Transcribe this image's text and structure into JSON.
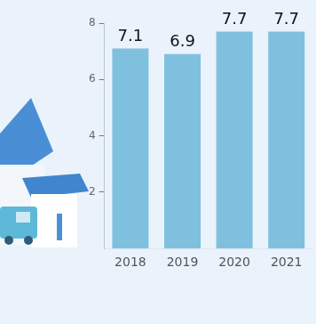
{
  "chart_data": {
    "type": "bar",
    "categories": [
      "2018",
      "2019",
      "2020",
      "2021"
    ],
    "values": [
      7.1,
      6.9,
      7.7,
      7.7
    ],
    "color": "#7fc0de",
    "ylim": [
      0,
      8
    ],
    "yticks": [
      2,
      4,
      6,
      8
    ],
    "grid": false,
    "data_labels": true
  }
}
